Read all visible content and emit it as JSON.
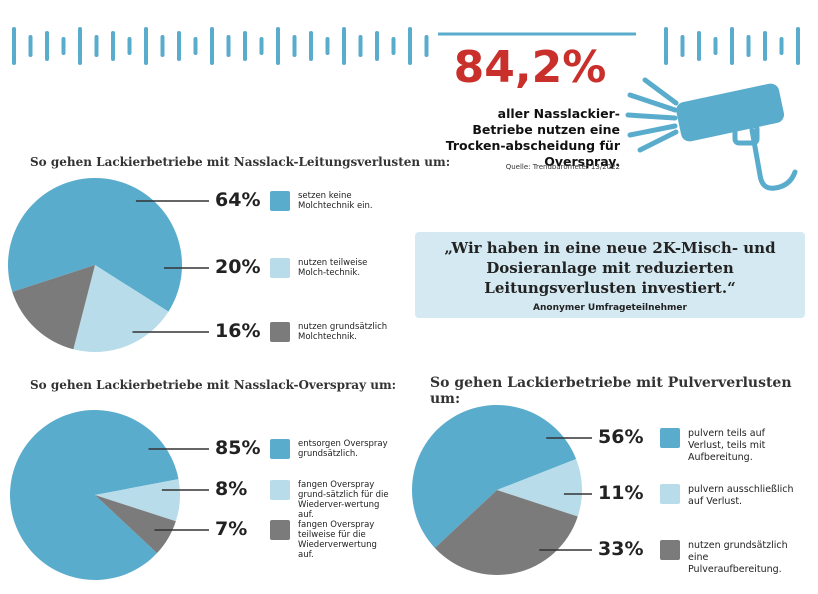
{
  "header": {
    "stat": "84,2%",
    "text": "aller Nasslackier-Betriebe nutzen eine Trocken-abscheidung für Overspray.",
    "source": "Quelle: Trendbarometer 13/2022"
  },
  "quote": {
    "text": "„Wir haben in eine neue 2K-Misch- und Dosieranlage mit reduzierten Leitungsverlusten investiert.“",
    "author": "Anonymer Umfrageteilnehmer"
  },
  "chart_data": [
    {
      "type": "pie",
      "title": "So gehen Lackierbetriebe mit Nasslack-Leitungsverlusten um:",
      "categories": [
        "setzen keine Molchtechnik ein.",
        "nutzen teilweise Molch-technik.",
        "nutzen grundsätzlich Molchtechnik."
      ],
      "values": [
        64,
        20,
        16
      ],
      "value_labels": [
        "64%",
        "20%",
        "16%"
      ],
      "colors": [
        "#5aaccd",
        "#b9dcea",
        "#7b7b7b"
      ]
    },
    {
      "type": "pie",
      "title": "So gehen Lackierbetriebe mit Nasslack-Overspray um:",
      "categories": [
        "entsorgen Overspray grundsätzlich.",
        "fangen Overspray grund-sätzlich für die Wiederver-wertung auf.",
        "fangen Overspray teilweise für die Wiederverwertung auf."
      ],
      "values": [
        85,
        8,
        7
      ],
      "value_labels": [
        "85%",
        "8%",
        "7%"
      ],
      "colors": [
        "#5aaccd",
        "#b9dcea",
        "#7b7b7b"
      ]
    },
    {
      "type": "pie",
      "title": "So gehen Lackierbetriebe mit Pulververlusten um:",
      "categories": [
        "pulvern teils auf Verlust, teils mit Aufbereitung.",
        "pulvern ausschließlich auf Verlust.",
        "nutzen grundsätzlich eine Pulveraufbereitung."
      ],
      "values": [
        56,
        11,
        33
      ],
      "value_labels": [
        "56%",
        "11%",
        "33%"
      ],
      "colors": [
        "#5aaccd",
        "#b9dcea",
        "#7b7b7b"
      ]
    }
  ]
}
